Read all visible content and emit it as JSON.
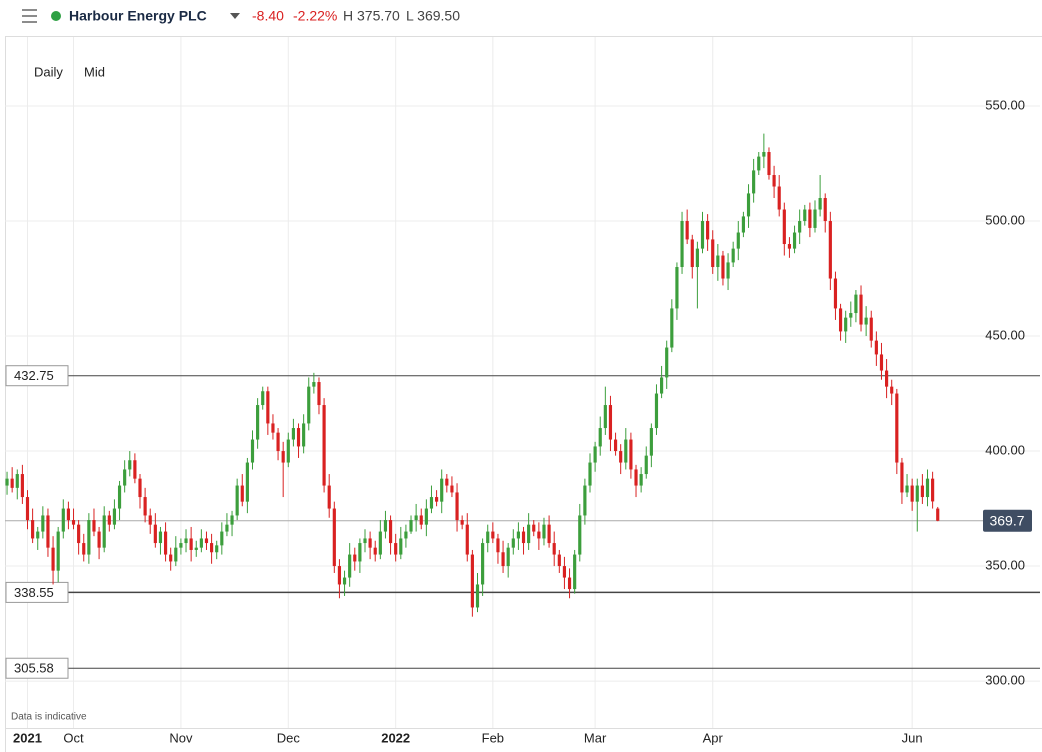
{
  "header": {
    "name": "Harbour Energy PLC",
    "change": "-8.40",
    "change_pct": "-2.22%",
    "high": "H 375.70",
    "low": "L 369.50"
  },
  "buttons": [
    "Daily",
    "Mid"
  ],
  "chart_data": {
    "type": "candlestick",
    "up_color": "#3c9e3c",
    "down_color": "#d92121",
    "open": [
      385,
      388,
      384,
      390,
      380,
      370,
      362,
      365,
      372,
      358,
      348,
      365,
      375,
      370,
      368,
      360,
      355,
      370,
      365,
      358,
      372,
      368,
      375,
      385,
      392,
      396,
      388,
      380,
      372,
      368,
      360,
      365,
      355,
      352,
      358,
      360,
      362,
      357,
      358,
      362,
      360,
      356,
      359,
      365,
      368,
      372,
      385,
      378,
      395,
      405,
      420,
      426,
      412,
      408,
      400,
      395,
      405,
      410,
      402,
      412,
      428,
      430,
      420,
      385,
      375,
      350,
      342,
      345,
      355,
      352,
      360,
      362,
      358,
      355,
      365,
      370,
      360,
      355,
      362,
      365,
      370,
      372,
      368,
      375,
      380,
      378,
      388,
      385,
      382,
      370,
      368,
      355,
      332,
      342,
      360,
      365,
      362,
      356,
      350,
      358,
      362,
      365,
      360,
      368,
      365,
      362,
      368,
      360,
      355,
      350,
      345,
      340,
      355,
      372,
      385,
      395,
      402,
      410,
      420,
      405,
      400,
      395,
      405,
      392,
      385,
      390,
      398,
      410,
      425,
      432,
      445,
      462,
      480,
      500,
      492,
      480,
      488,
      500,
      492,
      480,
      485,
      475,
      482,
      488,
      495,
      502,
      512,
      522,
      528,
      530,
      520,
      515,
      505,
      490,
      488,
      495,
      500,
      505,
      497,
      505,
      510,
      500,
      475,
      462,
      452,
      458,
      460,
      468,
      455,
      458,
      448,
      442,
      435,
      428,
      425,
      395,
      382,
      385,
      378,
      385,
      380,
      388,
      375
    ],
    "high": [
      391,
      393,
      392,
      394,
      383,
      375,
      367,
      376,
      375,
      363,
      367,
      379,
      378,
      375,
      370,
      364,
      373,
      375,
      367,
      376,
      374,
      379,
      387,
      396,
      400,
      399,
      390,
      384,
      375,
      373,
      367,
      369,
      358,
      363,
      362,
      366,
      367,
      361,
      366,
      365,
      364,
      361,
      369,
      373,
      374,
      388,
      390,
      397,
      409,
      423,
      428,
      428,
      416,
      410,
      404,
      408,
      414,
      412,
      416,
      432,
      434,
      432,
      423,
      390,
      378,
      353,
      348,
      360,
      358,
      362,
      366,
      365,
      361,
      370,
      374,
      372,
      364,
      367,
      368,
      372,
      377,
      375,
      379,
      385,
      383,
      392,
      390,
      389,
      386,
      372,
      373,
      357,
      347,
      362,
      368,
      369,
      364,
      361,
      360,
      366,
      369,
      367,
      373,
      370,
      369,
      371,
      372,
      365,
      357,
      354,
      349,
      357,
      377,
      388,
      399,
      404,
      415,
      428,
      424,
      408,
      403,
      410,
      408,
      394,
      393,
      402,
      412,
      429,
      437,
      448,
      466,
      482,
      504,
      505,
      494,
      491,
      504,
      503,
      496,
      490,
      487,
      486,
      491,
      500,
      504,
      516,
      527,
      530,
      538,
      532,
      524,
      520,
      508,
      493,
      498,
      505,
      507,
      508,
      509,
      520,
      512,
      504,
      478,
      464,
      461,
      465,
      470,
      472,
      463,
      461,
      452,
      447,
      440,
      431,
      427,
      397,
      390,
      388,
      388,
      390,
      392,
      391,
      375.7
    ],
    "low": [
      381,
      382,
      379,
      377,
      366,
      360,
      357,
      362,
      354,
      342,
      343,
      362,
      366,
      366,
      355,
      352,
      351,
      363,
      353,
      356,
      365,
      366,
      370,
      382,
      389,
      386,
      375,
      369,
      364,
      358,
      355,
      352,
      348,
      350,
      355,
      356,
      352,
      354,
      356,
      357,
      351,
      353,
      355,
      363,
      363,
      370,
      376,
      373,
      392,
      401,
      418,
      407,
      405,
      396,
      380,
      393,
      402,
      397,
      399,
      409,
      425,
      416,
      382,
      371,
      347,
      336,
      337,
      341,
      348,
      347,
      356,
      353,
      352,
      353,
      362,
      355,
      352,
      353,
      358,
      364,
      365,
      366,
      363,
      373,
      376,
      373,
      382,
      380,
      365,
      366,
      352,
      328,
      330,
      337,
      356,
      360,
      351,
      347,
      345,
      355,
      357,
      355,
      357,
      363,
      357,
      359,
      358,
      350,
      347,
      340,
      336,
      338,
      352,
      368,
      382,
      391,
      398,
      407,
      400,
      398,
      390,
      392,
      388,
      380,
      382,
      388,
      393,
      407,
      423,
      427,
      443,
      457,
      477,
      490,
      475,
      462,
      486,
      487,
      477,
      474,
      472,
      470,
      480,
      483,
      493,
      497,
      508,
      520,
      523,
      518,
      510,
      502,
      485,
      484,
      486,
      490,
      498,
      493,
      495,
      502,
      495,
      470,
      457,
      448,
      447,
      454,
      456,
      452,
      450,
      445,
      437,
      431,
      423,
      420,
      390,
      377,
      380,
      374,
      365,
      377,
      376,
      375,
      369.5
    ],
    "close": [
      388,
      384,
      390,
      380,
      370,
      362,
      365,
      372,
      358,
      348,
      365,
      375,
      370,
      368,
      360,
      355,
      370,
      365,
      358,
      372,
      368,
      375,
      385,
      392,
      396,
      388,
      380,
      372,
      368,
      360,
      365,
      355,
      352,
      358,
      360,
      362,
      357,
      358,
      362,
      360,
      356,
      359,
      365,
      368,
      372,
      385,
      378,
      395,
      405,
      420,
      426,
      412,
      408,
      400,
      395,
      405,
      410,
      402,
      412,
      428,
      430,
      420,
      385,
      375,
      350,
      342,
      345,
      355,
      352,
      360,
      362,
      358,
      355,
      365,
      370,
      360,
      355,
      362,
      365,
      370,
      372,
      368,
      375,
      380,
      378,
      388,
      385,
      382,
      370,
      368,
      355,
      332,
      342,
      360,
      365,
      362,
      356,
      350,
      358,
      362,
      365,
      360,
      368,
      365,
      362,
      368,
      360,
      355,
      350,
      345,
      340,
      355,
      372,
      385,
      395,
      402,
      410,
      420,
      405,
      400,
      395,
      405,
      392,
      385,
      390,
      398,
      410,
      425,
      432,
      445,
      462,
      480,
      500,
      492,
      480,
      488,
      500,
      492,
      480,
      485,
      475,
      482,
      488,
      495,
      502,
      512,
      522,
      528,
      530,
      520,
      515,
      505,
      490,
      488,
      495,
      500,
      505,
      497,
      505,
      510,
      500,
      475,
      462,
      452,
      458,
      460,
      468,
      455,
      458,
      448,
      442,
      435,
      428,
      425,
      395,
      382,
      385,
      378,
      385,
      380,
      388,
      378.1,
      369.7
    ],
    "xlim": [
      -0.4,
      202
    ],
    "xticks": [
      {
        "value": 4,
        "label": "2021"
      },
      {
        "value": 13,
        "label": "Oct"
      },
      {
        "value": 34,
        "label": "Nov"
      },
      {
        "value": 55,
        "label": "Dec"
      },
      {
        "value": 76,
        "label": "2022"
      },
      {
        "value": 95,
        "label": "Feb"
      },
      {
        "value": 115,
        "label": "Mar"
      },
      {
        "value": 138,
        "label": "Apr"
      },
      {
        "value": 177,
        "label": "Jun"
      }
    ],
    "ylim": [
      279.6,
      580
    ],
    "yticks": [
      {
        "value": 300,
        "label": "300.00"
      },
      {
        "value": 350,
        "label": "350.00"
      },
      {
        "value": 400,
        "label": "400.00"
      },
      {
        "value": 450,
        "label": "450.00"
      },
      {
        "value": 500,
        "label": "500.00"
      },
      {
        "value": 550,
        "label": "550.00"
      }
    ],
    "levels": [
      432.75,
      338.55,
      305.58
    ],
    "last_price": 369.7,
    "annotation": "Data is indicative",
    "grid": true
  }
}
